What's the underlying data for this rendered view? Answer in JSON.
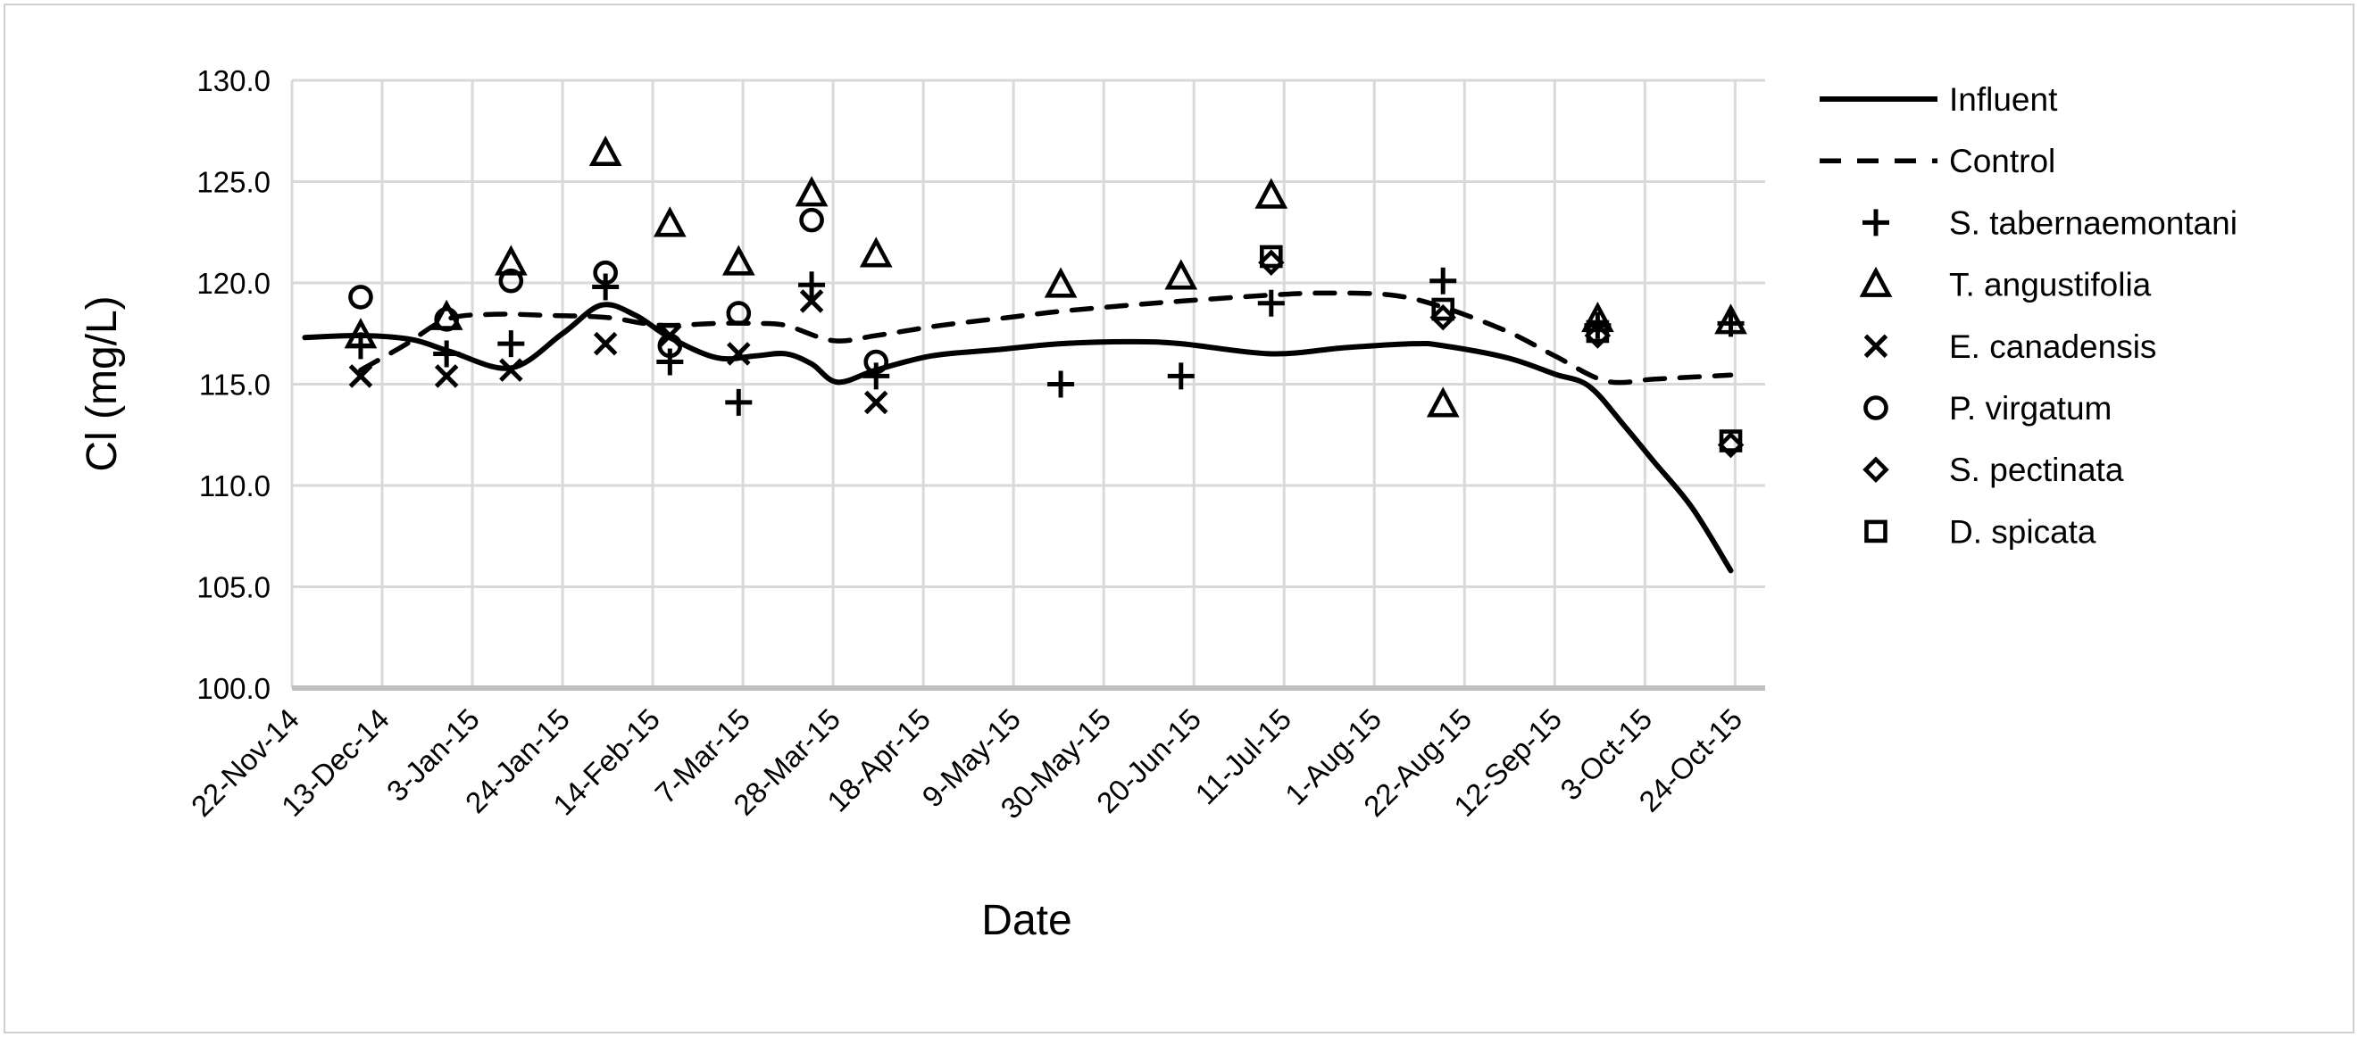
{
  "colors": {
    "series": "#000000",
    "gridline": "#d9d9d9",
    "axis_line": "#bfbfbf",
    "border": "#cfcfcf",
    "background": "#ffffff"
  },
  "chart_data": {
    "type": "scatter",
    "title": "",
    "xlabel": "Date",
    "ylabel": "Cl (mg/L)",
    "ylim": [
      100,
      130
    ],
    "ytick_labels": [
      "130.0",
      "125.0",
      "120.0",
      "115.0",
      "110.0",
      "105.0",
      "100.0"
    ],
    "xtick_labels": [
      "22-Nov-14",
      "13-Dec-14",
      "3-Jan-15",
      "24-Jan-15",
      "14-Feb-15",
      "7-Mar-15",
      "28-Mar-15",
      "18-Apr-15",
      "9-May-15",
      "30-May-15",
      "20-Jun-15",
      "11-Jul-15",
      "1-Aug-15",
      "22-Aug-15",
      "12-Sep-15",
      "3-Oct-15",
      "24-Oct-15"
    ],
    "x_start_date": "2014-11-22",
    "x_tick_interval_days": 21,
    "x_end_overhang_days": 7,
    "grid": true,
    "legend_position": "right",
    "series": [
      {
        "name": "Influent",
        "kind": "line",
        "line_style": "solid",
        "points": [
          [
            "2014-11-25",
            117.3
          ],
          [
            "2014-12-08",
            117.4
          ],
          [
            "2014-12-20",
            117.2
          ],
          [
            "2014-12-29",
            116.6
          ],
          [
            "2015-01-12",
            115.8
          ],
          [
            "2015-01-24",
            117.5
          ],
          [
            "2015-02-02",
            118.9
          ],
          [
            "2015-02-10",
            118.4
          ],
          [
            "2015-02-18",
            117.3
          ],
          [
            "2015-03-01",
            116.3
          ],
          [
            "2015-03-10",
            116.4
          ],
          [
            "2015-03-17",
            116.5
          ],
          [
            "2015-03-23",
            116.0
          ],
          [
            "2015-03-29",
            115.1
          ],
          [
            "2015-04-07",
            115.7
          ],
          [
            "2015-04-20",
            116.4
          ],
          [
            "2015-05-05",
            116.7
          ],
          [
            "2015-05-20",
            117.0
          ],
          [
            "2015-06-05",
            117.1
          ],
          [
            "2015-06-17",
            117.0
          ],
          [
            "2015-07-08",
            116.5
          ],
          [
            "2015-07-25",
            116.8
          ],
          [
            "2015-08-10",
            117.0
          ],
          [
            "2015-08-17",
            116.9
          ],
          [
            "2015-09-01",
            116.3
          ],
          [
            "2015-09-12",
            115.5
          ],
          [
            "2015-09-20",
            114.9
          ],
          [
            "2015-09-28",
            113.0
          ],
          [
            "2015-10-05",
            111.2
          ],
          [
            "2015-10-14",
            108.9
          ],
          [
            "2015-10-23",
            105.8
          ]
        ]
      },
      {
        "name": "Control",
        "kind": "line",
        "line_style": "dashed",
        "points": [
          [
            "2014-12-08",
            115.7
          ],
          [
            "2014-12-18",
            116.9
          ],
          [
            "2014-12-28",
            118.2
          ],
          [
            "2015-01-08",
            118.45
          ],
          [
            "2015-01-20",
            118.4
          ],
          [
            "2015-02-03",
            118.3
          ],
          [
            "2015-02-12",
            118.0
          ],
          [
            "2015-02-18",
            117.9
          ],
          [
            "2015-03-01",
            118.0
          ],
          [
            "2015-03-10",
            118.0
          ],
          [
            "2015-03-17",
            117.9
          ],
          [
            "2015-03-28",
            117.15
          ],
          [
            "2015-04-07",
            117.4
          ],
          [
            "2015-04-22",
            117.9
          ],
          [
            "2015-05-08",
            118.3
          ],
          [
            "2015-05-20",
            118.6
          ],
          [
            "2015-06-05",
            118.9
          ],
          [
            "2015-06-17",
            119.1
          ],
          [
            "2015-07-08",
            119.4
          ],
          [
            "2015-07-20",
            119.5
          ],
          [
            "2015-08-05",
            119.4
          ],
          [
            "2015-08-17",
            118.8
          ],
          [
            "2015-09-01",
            117.6
          ],
          [
            "2015-09-12",
            116.4
          ],
          [
            "2015-09-24",
            115.15
          ],
          [
            "2015-10-05",
            115.25
          ],
          [
            "2015-10-14",
            115.35
          ],
          [
            "2015-10-23",
            115.45
          ]
        ]
      },
      {
        "name": "S. tabernaemontani",
        "kind": "scatter",
        "marker": "plus",
        "points": [
          [
            "2014-12-08",
            116.9
          ],
          [
            "2014-12-28",
            116.5
          ],
          [
            "2015-01-12",
            117.0
          ],
          [
            "2015-02-03",
            119.8
          ],
          [
            "2015-02-18",
            116.1
          ],
          [
            "2015-03-06",
            114.1
          ],
          [
            "2015-03-23",
            119.9
          ],
          [
            "2015-04-07",
            115.4
          ],
          [
            "2015-05-20",
            115.0
          ],
          [
            "2015-06-17",
            115.4
          ],
          [
            "2015-07-08",
            119.0
          ],
          [
            "2015-08-17",
            120.1
          ],
          [
            "2015-09-22",
            117.9
          ],
          [
            "2015-10-23",
            118.0
          ]
        ]
      },
      {
        "name": "T. angustifolia",
        "kind": "scatter",
        "marker": "triangle",
        "points": [
          [
            "2014-12-08",
            117.4
          ],
          [
            "2014-12-28",
            118.3
          ],
          [
            "2015-01-12",
            121.0
          ],
          [
            "2015-02-03",
            126.4
          ],
          [
            "2015-02-18",
            122.9
          ],
          [
            "2015-03-06",
            121.0
          ],
          [
            "2015-03-23",
            124.4
          ],
          [
            "2015-04-07",
            121.4
          ],
          [
            "2015-05-20",
            119.9
          ],
          [
            "2015-06-17",
            120.3
          ],
          [
            "2015-07-08",
            124.3
          ],
          [
            "2015-08-17",
            114.0
          ],
          [
            "2015-09-22",
            118.2
          ],
          [
            "2015-10-23",
            118.1
          ]
        ]
      },
      {
        "name": "E. canadensis",
        "kind": "scatter",
        "marker": "x",
        "points": [
          [
            "2014-12-08",
            115.4
          ],
          [
            "2014-12-28",
            115.4
          ],
          [
            "2015-01-12",
            115.7
          ],
          [
            "2015-02-03",
            117.0
          ],
          [
            "2015-02-18",
            117.4
          ],
          [
            "2015-03-06",
            116.5
          ],
          [
            "2015-03-23",
            119.1
          ],
          [
            "2015-04-07",
            114.1
          ]
        ]
      },
      {
        "name": "P. virgatum",
        "kind": "scatter",
        "marker": "circle",
        "points": [
          [
            "2014-12-08",
            119.3
          ],
          [
            "2014-12-28",
            118.2
          ],
          [
            "2015-01-12",
            120.1
          ],
          [
            "2015-02-03",
            120.5
          ],
          [
            "2015-02-18",
            116.9
          ],
          [
            "2015-03-06",
            118.5
          ],
          [
            "2015-03-23",
            123.1
          ],
          [
            "2015-04-07",
            116.1
          ]
        ]
      },
      {
        "name": "S. pectinata",
        "kind": "scatter",
        "marker": "diamond",
        "points": [
          [
            "2015-07-08",
            121.0
          ],
          [
            "2015-08-17",
            118.3
          ],
          [
            "2015-09-22",
            117.4
          ],
          [
            "2015-10-23",
            112.0
          ]
        ]
      },
      {
        "name": "D. spicata",
        "kind": "scatter",
        "marker": "square",
        "points": [
          [
            "2015-07-08",
            121.3
          ],
          [
            "2015-08-17",
            118.7
          ],
          [
            "2015-09-22",
            117.6
          ],
          [
            "2015-10-23",
            112.2
          ]
        ]
      }
    ]
  }
}
